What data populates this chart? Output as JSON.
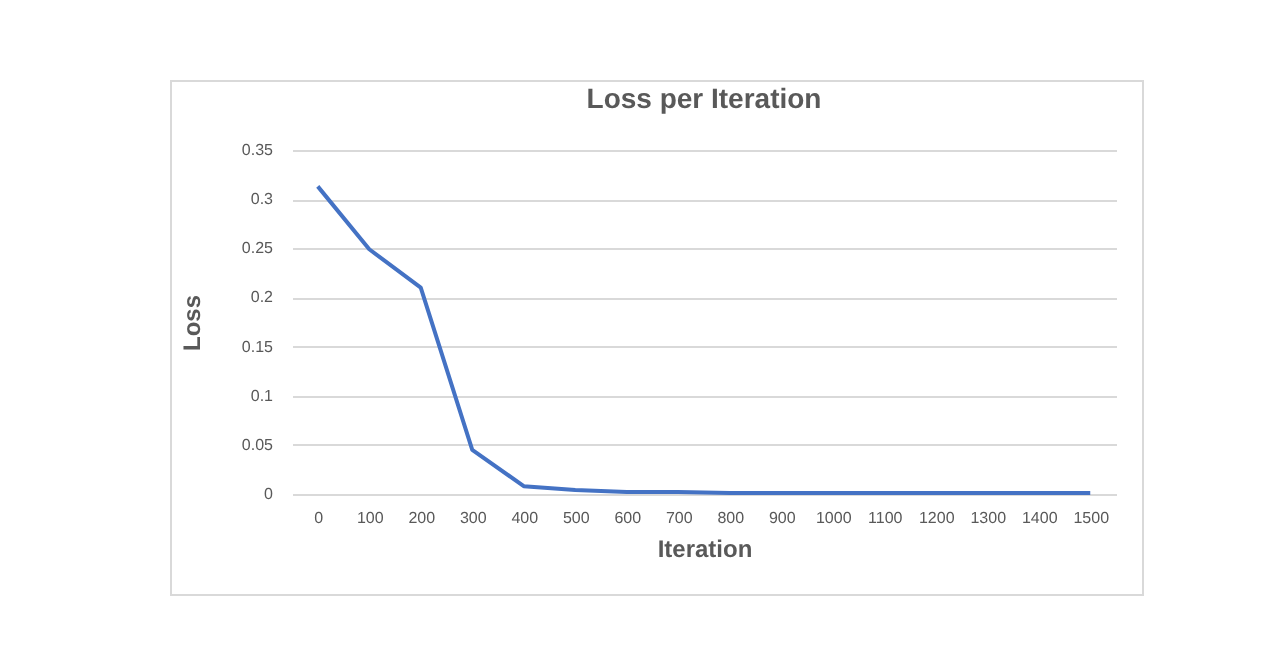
{
  "chart_data": {
    "type": "line",
    "title": "Loss per Iteration",
    "xlabel": "Iteration",
    "ylabel": "Loss",
    "categories": [
      "0",
      "100",
      "200",
      "300",
      "400",
      "500",
      "600",
      "700",
      "800",
      "900",
      "1000",
      "1100",
      "1200",
      "1300",
      "1400",
      "1500"
    ],
    "series": [
      {
        "color": "#4472c4",
        "values": [
          0.313,
          0.249,
          0.21,
          0.045,
          0.008,
          0.004,
          0.002,
          0.002,
          0.001,
          0.001,
          0.001,
          0.001,
          0.001,
          0.001,
          0.001,
          0.001
        ]
      }
    ],
    "ylim": [
      0,
      0.35
    ],
    "yticks": [
      0,
      0.05,
      0.1,
      0.15,
      0.2,
      0.25,
      0.3,
      0.35
    ],
    "grid": "y",
    "marker": "none",
    "line_style": "solid"
  }
}
